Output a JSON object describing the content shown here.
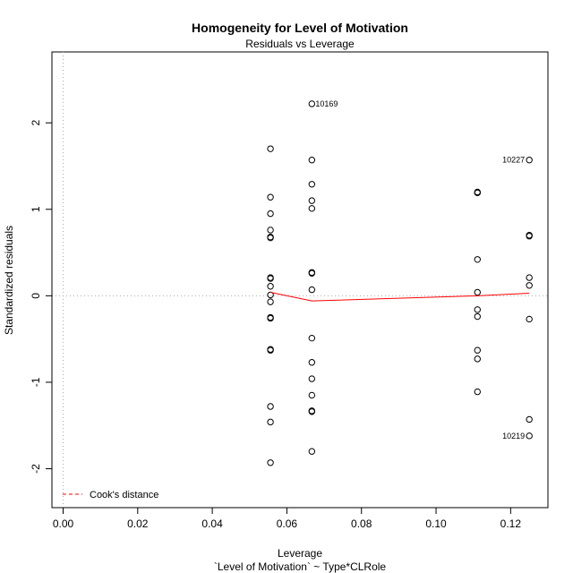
{
  "chart_data": {
    "type": "scatter",
    "title": "Homogeneity for Level of Motivation",
    "subtitle": "Residuals vs Leverage",
    "xlabel": "Leverage",
    "xlabel_sub": "`Level of Motivation` ~ Type*CLRole",
    "ylabel": "Standardized residuals",
    "xlim": [
      -0.003,
      0.13
    ],
    "ylim": [
      -2.45,
      2.82
    ],
    "xticks": [
      "0.00",
      "0.02",
      "0.04",
      "0.06",
      "0.08",
      "0.10",
      "0.12"
    ],
    "xtick_values": [
      0.0,
      0.02,
      0.04,
      0.06,
      0.08,
      0.1,
      0.12
    ],
    "yticks": [
      "-2",
      "-1",
      "0",
      "1",
      "2"
    ],
    "ytick_values": [
      -2,
      -1,
      0,
      1,
      2
    ],
    "reference_lines": {
      "x": 0,
      "y": 0,
      "style": "dotted",
      "color": "#aaaaaa"
    },
    "points": [
      {
        "x": 0.0556,
        "y": 1.7
      },
      {
        "x": 0.0556,
        "y": 1.14
      },
      {
        "x": 0.0556,
        "y": 0.95
      },
      {
        "x": 0.0556,
        "y": 0.76
      },
      {
        "x": 0.0556,
        "y": 0.68
      },
      {
        "x": 0.0556,
        "y": 0.67
      },
      {
        "x": 0.0556,
        "y": 0.21
      },
      {
        "x": 0.0556,
        "y": 0.2
      },
      {
        "x": 0.0556,
        "y": 0.11
      },
      {
        "x": 0.0556,
        "y": 0.01
      },
      {
        "x": 0.0556,
        "y": -0.07
      },
      {
        "x": 0.0556,
        "y": -0.25
      },
      {
        "x": 0.0556,
        "y": -0.26
      },
      {
        "x": 0.0556,
        "y": -0.62
      },
      {
        "x": 0.0556,
        "y": -0.63
      },
      {
        "x": 0.0556,
        "y": -1.28
      },
      {
        "x": 0.0556,
        "y": -1.46
      },
      {
        "x": 0.0556,
        "y": -1.93
      },
      {
        "x": 0.0667,
        "y": 2.22,
        "label": "10169"
      },
      {
        "x": 0.0667,
        "y": 1.57
      },
      {
        "x": 0.0667,
        "y": 1.29
      },
      {
        "x": 0.0667,
        "y": 1.1
      },
      {
        "x": 0.0667,
        "y": 1.01
      },
      {
        "x": 0.0667,
        "y": 0.27
      },
      {
        "x": 0.0667,
        "y": 0.26
      },
      {
        "x": 0.0667,
        "y": 0.07
      },
      {
        "x": 0.0667,
        "y": -0.49
      },
      {
        "x": 0.0667,
        "y": -0.77
      },
      {
        "x": 0.0667,
        "y": -0.96
      },
      {
        "x": 0.0667,
        "y": -1.15
      },
      {
        "x": 0.0667,
        "y": -1.33
      },
      {
        "x": 0.0667,
        "y": -1.34
      },
      {
        "x": 0.0667,
        "y": -1.8
      },
      {
        "x": 0.1111,
        "y": 1.2
      },
      {
        "x": 0.1111,
        "y": 1.19
      },
      {
        "x": 0.1111,
        "y": 0.42
      },
      {
        "x": 0.1111,
        "y": 0.04
      },
      {
        "x": 0.1111,
        "y": -0.16
      },
      {
        "x": 0.1111,
        "y": -0.24
      },
      {
        "x": 0.1111,
        "y": -0.63
      },
      {
        "x": 0.1111,
        "y": -0.73
      },
      {
        "x": 0.1111,
        "y": -1.11
      },
      {
        "x": 0.125,
        "y": 1.57,
        "label": "10227"
      },
      {
        "x": 0.125,
        "y": 0.7
      },
      {
        "x": 0.125,
        "y": 0.69
      },
      {
        "x": 0.125,
        "y": 0.21
      },
      {
        "x": 0.125,
        "y": 0.12
      },
      {
        "x": 0.125,
        "y": -0.27
      },
      {
        "x": 0.125,
        "y": -1.43
      },
      {
        "x": 0.125,
        "y": -1.62,
        "label": "10219"
      }
    ],
    "smoother": {
      "color": "#ff0000",
      "x": [
        0.0556,
        0.0667,
        0.1111,
        0.125
      ],
      "y": [
        0.04,
        -0.06,
        0.0,
        0.03
      ]
    },
    "legend": {
      "position": "bottom-left",
      "entries": [
        {
          "label": "Cook's distance",
          "color": "#ff0000",
          "style": "dashed"
        }
      ]
    },
    "grid": false
  }
}
